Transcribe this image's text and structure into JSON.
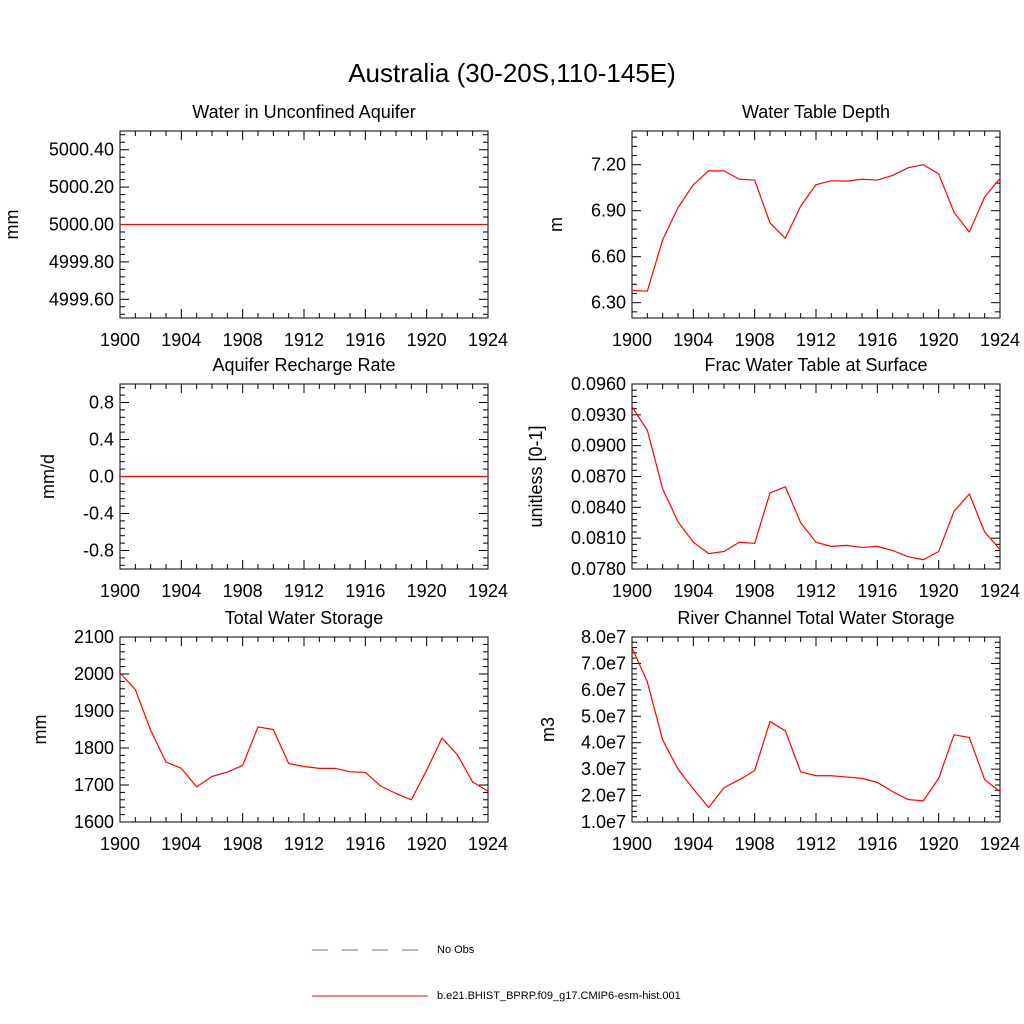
{
  "figure": {
    "title": "Australia (30-20S,110-145E)"
  },
  "legend": {
    "placement": "bottom-center",
    "entries": [
      {
        "label": "No Obs",
        "color": "#6a6ab8",
        "style": "dashed"
      },
      {
        "label": "b.e21.BHIST_BPRP.f09_g17.CMIP6-esm-hist.001",
        "color": "#ff0000",
        "style": "solid"
      }
    ]
  },
  "chart_data": [
    {
      "id": "unconfined-aquifer",
      "type": "line",
      "title": "Water in Unconfined Aquifer",
      "ylabel": "mm",
      "xlim": [
        1900,
        1924
      ],
      "ylim": [
        4999.5,
        5000.5
      ],
      "xticks": [
        "1900",
        "1904",
        "1908",
        "1912",
        "1916",
        "1920",
        "1924"
      ],
      "yticks": [
        {
          "value": 4999.6,
          "label": "4999.60"
        },
        {
          "value": 4999.8,
          "label": "4999.80"
        },
        {
          "value": 5000.0,
          "label": "5000.00"
        },
        {
          "value": 5000.2,
          "label": "5000.20"
        },
        {
          "value": 5000.4,
          "label": "5000.40"
        }
      ],
      "series": [
        {
          "color": "#ff0000",
          "x": [
            1900,
            1901,
            1902,
            1903,
            1904,
            1905,
            1906,
            1907,
            1908,
            1909,
            1910,
            1911,
            1912,
            1913,
            1914,
            1915,
            1916,
            1917,
            1918,
            1919,
            1920,
            1921,
            1922,
            1923,
            1924
          ],
          "y": [
            5000,
            5000,
            5000,
            5000,
            5000,
            5000,
            5000,
            5000,
            5000,
            5000,
            5000,
            5000,
            5000,
            5000,
            5000,
            5000,
            5000,
            5000,
            5000,
            5000,
            5000,
            5000,
            5000,
            5000,
            5000
          ]
        }
      ]
    },
    {
      "id": "water-table-depth",
      "type": "line",
      "title": "Water Table Depth",
      "ylabel": "m",
      "xlim": [
        1900,
        1924
      ],
      "ylim": [
        6.2,
        7.42
      ],
      "xticks": [
        "1900",
        "1904",
        "1908",
        "1912",
        "1916",
        "1920",
        "1924"
      ],
      "yticks": [
        {
          "value": 6.3,
          "label": "6.30"
        },
        {
          "value": 6.6,
          "label": "6.60"
        },
        {
          "value": 6.9,
          "label": "6.90"
        },
        {
          "value": 7.2,
          "label": "7.20"
        }
      ],
      "series": [
        {
          "color": "#ff0000",
          "x": [
            1900,
            1901,
            1902,
            1903,
            1904,
            1905,
            1906,
            1907,
            1908,
            1909,
            1910,
            1911,
            1912,
            1913,
            1914,
            1915,
            1916,
            1917,
            1918,
            1919,
            1920,
            1921,
            1922,
            1923,
            1924
          ],
          "y": [
            6.38,
            6.375,
            6.71,
            6.92,
            7.07,
            7.16,
            7.16,
            7.105,
            7.1,
            6.82,
            6.72,
            6.93,
            7.07,
            7.095,
            7.093,
            7.105,
            7.1,
            7.13,
            7.18,
            7.2,
            7.14,
            6.89,
            6.76,
            6.99,
            7.11
          ]
        }
      ]
    },
    {
      "id": "aquifer-recharge",
      "type": "line",
      "title": "Aquifer Recharge Rate",
      "ylabel": "mm/d",
      "xlim": [
        1900,
        1924
      ],
      "ylim": [
        -1.0,
        1.0
      ],
      "xticks": [
        "1900",
        "1904",
        "1908",
        "1912",
        "1916",
        "1920",
        "1924"
      ],
      "yticks": [
        {
          "value": -0.8,
          "label": "-0.8"
        },
        {
          "value": -0.4,
          "label": "-0.4"
        },
        {
          "value": 0.0,
          "label": "0.0"
        },
        {
          "value": 0.4,
          "label": "0.4"
        },
        {
          "value": 0.8,
          "label": "0.8"
        }
      ],
      "series": [
        {
          "color": "#ff0000",
          "x": [
            1900,
            1901,
            1902,
            1903,
            1904,
            1905,
            1906,
            1907,
            1908,
            1909,
            1910,
            1911,
            1912,
            1913,
            1914,
            1915,
            1916,
            1917,
            1918,
            1919,
            1920,
            1921,
            1922,
            1923,
            1924
          ],
          "y": [
            0,
            0,
            0,
            0,
            0,
            0,
            0,
            0,
            0,
            0,
            0,
            0,
            0,
            0,
            0,
            0,
            0,
            0,
            0,
            0,
            0,
            0,
            0,
            0,
            0
          ]
        }
      ]
    },
    {
      "id": "frac-water-table",
      "type": "line",
      "title": "Frac Water Table at Surface",
      "ylabel": "unitless [0-1]",
      "xlim": [
        1900,
        1924
      ],
      "ylim": [
        0.078,
        0.096
      ],
      "xticks": [
        "1900",
        "1904",
        "1908",
        "1912",
        "1916",
        "1920",
        "1924"
      ],
      "yticks": [
        {
          "value": 0.078,
          "label": "0.0780"
        },
        {
          "value": 0.081,
          "label": "0.0810"
        },
        {
          "value": 0.084,
          "label": "0.0840"
        },
        {
          "value": 0.087,
          "label": "0.0870"
        },
        {
          "value": 0.09,
          "label": "0.0900"
        },
        {
          "value": 0.093,
          "label": "0.0930"
        },
        {
          "value": 0.096,
          "label": "0.0960"
        }
      ],
      "series": [
        {
          "color": "#ff0000",
          "x": [
            1900,
            1901,
            1902,
            1903,
            1904,
            1905,
            1906,
            1907,
            1908,
            1909,
            1910,
            1911,
            1912,
            1913,
            1914,
            1915,
            1916,
            1917,
            1918,
            1919,
            1920,
            1921,
            1922,
            1923,
            1924
          ],
          "y": [
            0.0938,
            0.0915,
            0.0858,
            0.0826,
            0.0806,
            0.0795,
            0.0797,
            0.0806,
            0.0805,
            0.0854,
            0.086,
            0.0825,
            0.0806,
            0.0802,
            0.0803,
            0.0801,
            0.0802,
            0.0798,
            0.0792,
            0.0789,
            0.0797,
            0.0836,
            0.0853,
            0.0816,
            0.0799
          ]
        }
      ]
    },
    {
      "id": "total-water-storage",
      "type": "line",
      "title": "Total Water Storage",
      "ylabel": "mm",
      "xlim": [
        1900,
        1924
      ],
      "ylim": [
        1600,
        2100
      ],
      "xticks": [
        "1900",
        "1904",
        "1908",
        "1912",
        "1916",
        "1920",
        "1924"
      ],
      "yticks": [
        {
          "value": 1600,
          "label": "1600"
        },
        {
          "value": 1700,
          "label": "1700"
        },
        {
          "value": 1800,
          "label": "1800"
        },
        {
          "value": 1900,
          "label": "1900"
        },
        {
          "value": 2000,
          "label": "2000"
        },
        {
          "value": 2100,
          "label": "2100"
        }
      ],
      "series": [
        {
          "color": "#ff0000",
          "x": [
            1900,
            1901,
            1902,
            1903,
            1904,
            1905,
            1906,
            1907,
            1908,
            1909,
            1910,
            1911,
            1912,
            1913,
            1914,
            1915,
            1916,
            1917,
            1918,
            1919,
            1920,
            1921,
            1922,
            1923,
            1924
          ],
          "y": [
            2003,
            1958,
            1848,
            1762,
            1745,
            1695,
            1723,
            1735,
            1753,
            1857,
            1850,
            1758,
            1750,
            1745,
            1745,
            1736,
            1734,
            1697,
            1677,
            1660,
            1740,
            1827,
            1782,
            1708,
            1683
          ]
        }
      ]
    },
    {
      "id": "river-channel-storage",
      "type": "line",
      "title": "River Channel Total Water Storage",
      "ylabel": "m3",
      "xlim": [
        1900,
        1924
      ],
      "ylim": [
        10000000,
        80000000
      ],
      "xticks": [
        "1900",
        "1904",
        "1908",
        "1912",
        "1916",
        "1920",
        "1924"
      ],
      "yticks": [
        {
          "value": 10000000,
          "label": "1.0e7"
        },
        {
          "value": 20000000,
          "label": "2.0e7"
        },
        {
          "value": 30000000,
          "label": "3.0e7"
        },
        {
          "value": 40000000,
          "label": "4.0e7"
        },
        {
          "value": 50000000,
          "label": "5.0e7"
        },
        {
          "value": 60000000,
          "label": "6.0e7"
        },
        {
          "value": 70000000,
          "label": "7.0e7"
        },
        {
          "value": 80000000,
          "label": "8.0e7"
        }
      ],
      "series": [
        {
          "color": "#ff0000",
          "x": [
            1900,
            1901,
            1902,
            1903,
            1904,
            1905,
            1906,
            1907,
            1908,
            1909,
            1910,
            1911,
            1912,
            1913,
            1914,
            1915,
            1916,
            1917,
            1918,
            1919,
            1920,
            1921,
            1922,
            1923,
            1924
          ],
          "y": [
            76000000,
            63000000,
            41000000,
            30000000,
            22500000,
            15500000,
            23000000,
            26000000,
            29500000,
            48000000,
            44500000,
            29000000,
            27500000,
            27500000,
            27000000,
            26500000,
            25000000,
            21500000,
            18500000,
            18000000,
            26500000,
            43000000,
            42000000,
            26000000,
            21500000
          ]
        }
      ]
    }
  ]
}
